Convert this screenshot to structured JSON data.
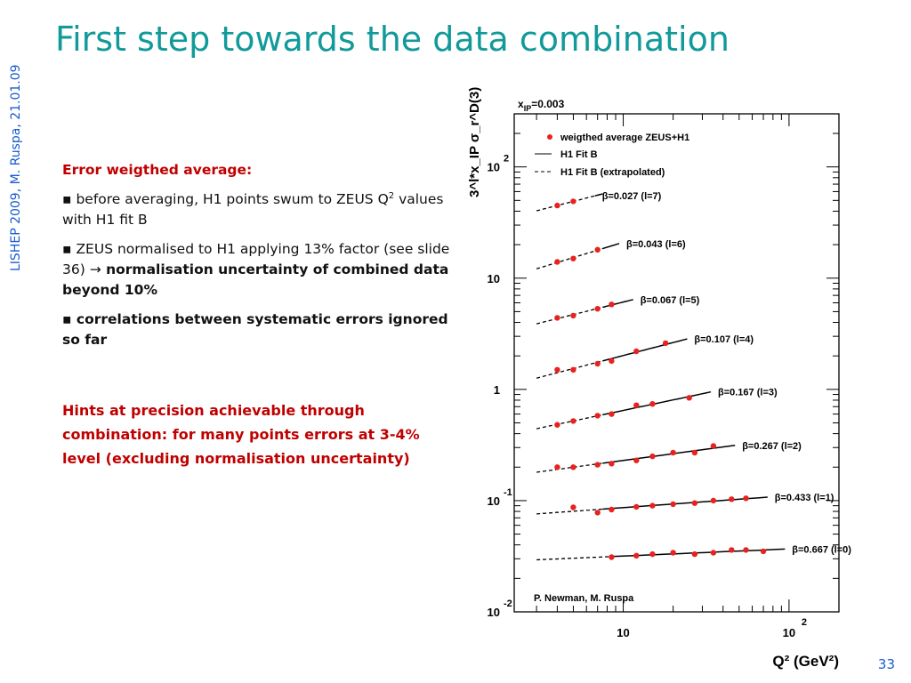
{
  "slide": {
    "title": "First step towards the data combination",
    "side_label": "LISHEP 2009, M. Ruspa, 21.01.09",
    "page_number": "33"
  },
  "text": {
    "heading": "Error weigthed average:",
    "b1_pre": "before averaging, H1 points swum to ZEUS Q",
    "b1_sup": "2",
    "b1_post": " values with H1 fit B",
    "b2_pre": " ZEUS normalised to H1 applying 13% factor (see slide 36)  ",
    "b2_arrow": "→",
    "b2_bold": " normalisation uncertainty of combined data beyond 10%",
    "b3": "correlations between systematic errors ignored so far",
    "hint": "Hints at precision achievable through combination: for many points errors at 3-4% level (excluding normalisation uncertainty)"
  },
  "chart_data": {
    "type": "scatter",
    "header": "x",
    "header_sub": "IP",
    "header_val": "=0.003",
    "ylabel": "3^l*x_IP σ_r^D(3)",
    "xlabel": "Q² (GeV²)",
    "x_scale": "log",
    "y_scale": "log",
    "xlim": [
      2.2,
      200
    ],
    "ylim": [
      0.01,
      300
    ],
    "x_ticks": [
      {
        "base": "10",
        "exp": ""
      },
      {
        "base": "10",
        "exp": "2"
      }
    ],
    "y_ticks": [
      {
        "base": "10",
        "exp": "2"
      },
      {
        "base": "10",
        "exp": ""
      },
      {
        "base": "1",
        "exp": ""
      },
      {
        "base": "10",
        "exp": "-1"
      },
      {
        "base": "10",
        "exp": "-2"
      }
    ],
    "legend": [
      {
        "label": "weigthed average ZEUS+H1",
        "style": "dot",
        "color": "#e8231f"
      },
      {
        "label": "H1 Fit B",
        "style": "solid",
        "color": "#000000"
      },
      {
        "label": "H1 Fit B (extrapolated)",
        "style": "dashed",
        "color": "#000000"
      }
    ],
    "legend_position": "top-left",
    "annotation": "P. Newman, M. Ruspa",
    "series": [
      {
        "name": "β=0.027 (l=7)",
        "x": [
          4,
          5
        ],
        "y": [
          45,
          49
        ]
      },
      {
        "name": "β=0.043 (l=6)",
        "x": [
          4,
          5,
          7
        ],
        "y": [
          14,
          15,
          18
        ]
      },
      {
        "name": "β=0.067 (l=5)",
        "x": [
          4,
          5,
          7,
          8.5
        ],
        "y": [
          4.4,
          4.6,
          5.3,
          5.8
        ]
      },
      {
        "name": "β=0.107 (l=4)",
        "x": [
          4,
          5,
          7,
          8.5,
          12,
          18
        ],
        "y": [
          1.5,
          1.5,
          1.7,
          1.8,
          2.2,
          2.6
        ]
      },
      {
        "name": "β=0.167 (l=3)",
        "x": [
          4,
          5,
          7,
          8.5,
          12,
          15,
          25
        ],
        "y": [
          0.48,
          0.52,
          0.58,
          0.6,
          0.72,
          0.74,
          0.84
        ]
      },
      {
        "name": "β=0.267 (l=2)",
        "x": [
          4,
          5,
          7,
          8.5,
          12,
          15,
          20,
          27,
          35
        ],
        "y": [
          0.2,
          0.2,
          0.21,
          0.215,
          0.23,
          0.25,
          0.27,
          0.27,
          0.31
        ]
      },
      {
        "name": "β=0.433 (l=1)",
        "x": [
          5,
          7,
          8.5,
          12,
          15,
          20,
          27,
          35,
          45,
          55
        ],
        "y": [
          0.087,
          0.078,
          0.083,
          0.088,
          0.09,
          0.093,
          0.095,
          0.1,
          0.103,
          0.105
        ]
      },
      {
        "name": "β=0.667 (l=0)",
        "x": [
          8.5,
          12,
          15,
          20,
          27,
          35,
          45,
          55,
          70
        ],
        "y": [
          0.031,
          0.032,
          0.033,
          0.034,
          0.033,
          0.034,
          0.036,
          0.036,
          0.035
        ]
      }
    ]
  }
}
